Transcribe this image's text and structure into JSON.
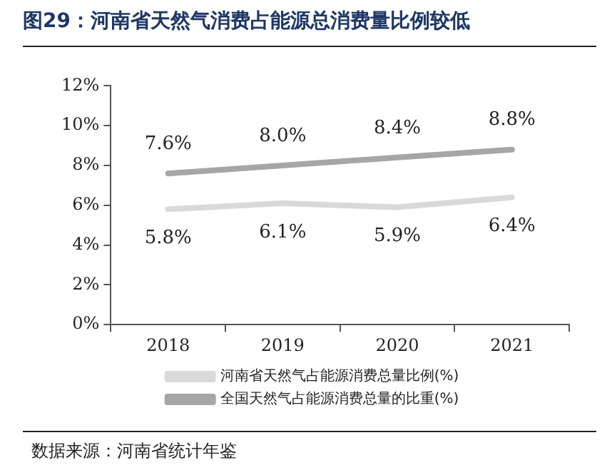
{
  "chart_data": {
    "type": "line",
    "title": "图29：河南省天然气消费占能源总消费量比例较低",
    "categories": [
      "2018",
      "2019",
      "2020",
      "2021"
    ],
    "series": [
      {
        "name": "河南省天然气占能源消费总量比例(%)",
        "color": "#d9d9d9",
        "values": [
          5.8,
          6.1,
          5.9,
          6.4
        ],
        "value_labels": [
          "5.8%",
          "6.1%",
          "5.9%",
          "6.4%"
        ]
      },
      {
        "name": "全国天然气占能源消费总量的比重(%)",
        "color": "#a6a6a6",
        "values": [
          7.6,
          8.0,
          8.4,
          8.8
        ],
        "value_labels": [
          "7.6%",
          "8.0%",
          "8.4%",
          "8.8%"
        ]
      }
    ],
    "ylim": [
      0,
      12
    ],
    "yticks": [
      {
        "value": 0,
        "label": "0%"
      },
      {
        "value": 2,
        "label": "2%"
      },
      {
        "value": 4,
        "label": "4%"
      },
      {
        "value": 6,
        "label": "6%"
      },
      {
        "value": 8,
        "label": "8%"
      },
      {
        "value": 10,
        "label": "10%"
      },
      {
        "value": 12,
        "label": "12%"
      }
    ],
    "grid": false,
    "legend": "bottom",
    "marker": "none",
    "line_style": "solid",
    "annotations": [
      "数据来源：河南省统计年鉴"
    ]
  }
}
